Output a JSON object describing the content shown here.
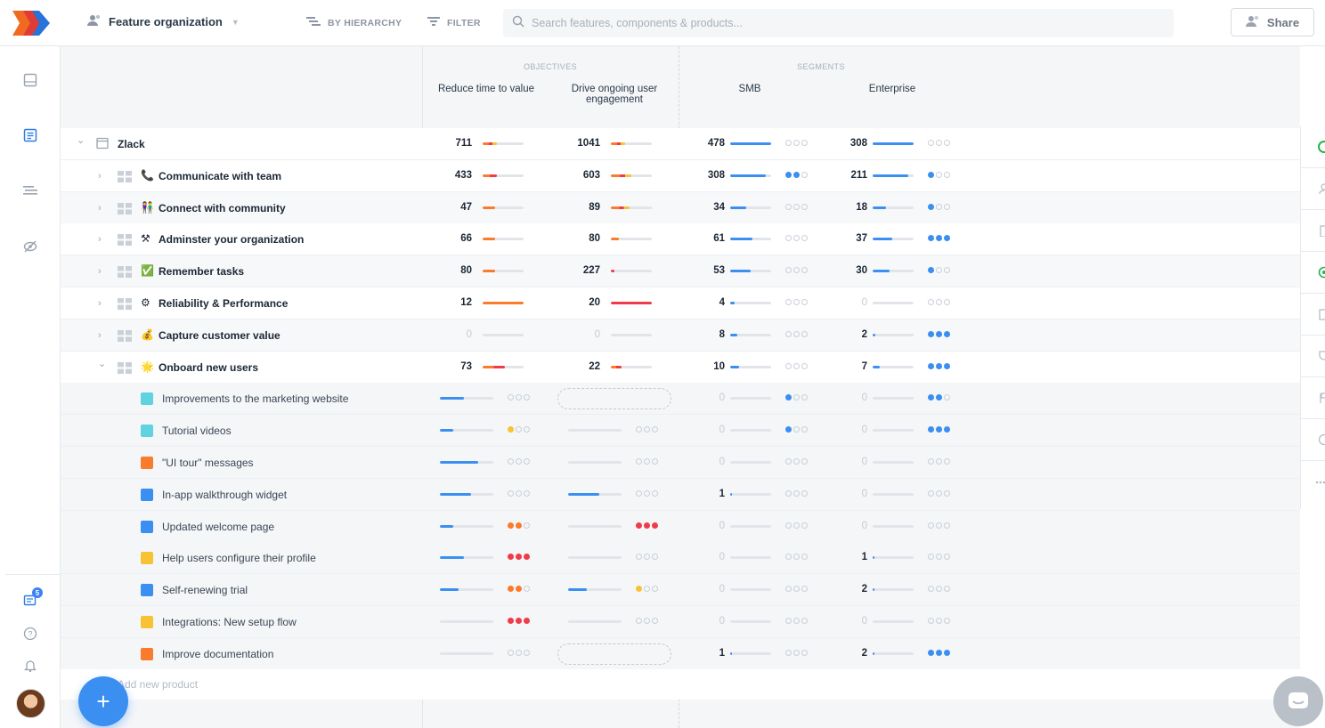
{
  "topbar": {
    "workspace": "Feature organization",
    "by_hierarchy": "BY HIERARCHY",
    "filter": "FILTER",
    "search_placeholder": "Search features, components & products...",
    "share": "Share"
  },
  "sidebar": {
    "notifications_badge": "5"
  },
  "columns": {
    "objectives_label": "OBJECTIVES",
    "segments_label": "SEGMENTS",
    "reduce": "Reduce time to value",
    "drive_line1": "Drive ongoing user",
    "drive_line2": "engagement",
    "smb": "SMB",
    "enterprise": "Enterprise"
  },
  "colors": {
    "blue": "#3b8ff0",
    "orange": "#f97b2b",
    "red": "#ef3b4a",
    "yellow": "#f7c234",
    "teal": "#5fd3df"
  },
  "rows": [
    {
      "name": "Zlack",
      "icon": "window-icon",
      "level": 0,
      "values": [
        "711",
        "1041",
        "478",
        "308"
      ],
      "fills": [
        [
          0.35,
          "oy"
        ],
        [
          0.35,
          "oy"
        ],
        [
          1.0,
          "b"
        ],
        [
          1.0,
          "b"
        ]
      ],
      "dots": [
        null,
        null,
        0,
        0
      ]
    },
    {
      "name": "Communicate with team",
      "icon": "phone-icon",
      "emoji": "📞",
      "level": 1,
      "values": [
        "433",
        "603",
        "308",
        "211"
      ],
      "fills": [
        [
          0.35,
          "or"
        ],
        [
          0.5,
          "oy"
        ],
        [
          0.88,
          "b"
        ],
        [
          0.88,
          "b"
        ]
      ],
      "dots": [
        null,
        null,
        2,
        1
      ]
    },
    {
      "name": "Connect with community",
      "icon": "people-icon",
      "emoji": "👫",
      "level": 1,
      "values": [
        "47",
        "89",
        "34",
        "18"
      ],
      "fills": [
        [
          0.3,
          "o"
        ],
        [
          0.45,
          "oy"
        ],
        [
          0.4,
          "b"
        ],
        [
          0.33,
          "b"
        ]
      ],
      "dots": [
        null,
        null,
        0,
        1
      ]
    },
    {
      "name": "Adminster your organization",
      "icon": "tools-icon",
      "emoji": "⚒",
      "level": 1,
      "values": [
        "66",
        "80",
        "61",
        "37"
      ],
      "fills": [
        [
          0.3,
          "o"
        ],
        [
          0.2,
          "o"
        ],
        [
          0.55,
          "b"
        ],
        [
          0.48,
          "b"
        ]
      ],
      "dots": [
        null,
        null,
        0,
        3
      ]
    },
    {
      "name": "Remember tasks",
      "icon": "checkbox-icon",
      "emoji": "✅",
      "level": 1,
      "values": [
        "80",
        "227",
        "53",
        "30"
      ],
      "fills": [
        [
          0.3,
          "o"
        ],
        [
          0.08,
          "r"
        ],
        [
          0.5,
          "b"
        ],
        [
          0.42,
          "b"
        ]
      ],
      "dots": [
        null,
        null,
        0,
        1
      ]
    },
    {
      "name": "Reliability & Performance",
      "icon": "gear-icon",
      "emoji": "⚙",
      "level": 1,
      "values": [
        "12",
        "20",
        "4",
        "0"
      ],
      "fills": [
        [
          1.0,
          "o"
        ],
        [
          1.0,
          "r"
        ],
        [
          0.1,
          "b"
        ],
        [
          0,
          "b"
        ]
      ],
      "dots": [
        null,
        null,
        0,
        0
      ]
    },
    {
      "name": "Capture customer value",
      "icon": "moneybag-icon",
      "emoji": "💰",
      "level": 1,
      "values": [
        "0",
        "0",
        "8",
        "2"
      ],
      "fills": [
        [
          0,
          "o"
        ],
        [
          0,
          "o"
        ],
        [
          0.18,
          "b"
        ],
        [
          0.06,
          "b"
        ]
      ],
      "dots": [
        null,
        null,
        0,
        3
      ]
    },
    {
      "name": "Onboard new users",
      "icon": "star-icon",
      "emoji": "🌟",
      "level": 1,
      "expanded": true,
      "values": [
        "73",
        "22",
        "10",
        "7"
      ],
      "fills": [
        [
          0.55,
          "or"
        ],
        [
          0.25,
          "or"
        ],
        [
          0.22,
          "b"
        ],
        [
          0.18,
          "b"
        ]
      ],
      "dots": [
        null,
        null,
        0,
        3
      ]
    },
    {
      "name": "Improvements to the marketing website",
      "color": "teal",
      "level": 2,
      "values": [
        null,
        null,
        "0",
        "0"
      ],
      "obj": [
        [
          0.45,
          0
        ],
        "dashed"
      ],
      "segdots": [
        1,
        2
      ]
    },
    {
      "name": "Tutorial videos",
      "color": "teal",
      "level": 2,
      "values": [
        null,
        null,
        "0",
        "0"
      ],
      "obj": [
        [
          0.25,
          "y1"
        ],
        [
          0,
          0
        ]
      ],
      "segdots": [
        1,
        3
      ]
    },
    {
      "name": "\"UI tour\" messages",
      "color": "orange",
      "level": 2,
      "values": [
        null,
        null,
        "0",
        "0"
      ],
      "obj": [
        [
          0.72,
          0
        ],
        [
          0,
          0
        ]
      ],
      "segdots": [
        0,
        0
      ]
    },
    {
      "name": "In-app walkthrough widget",
      "color": "blue",
      "level": 2,
      "values": [
        null,
        null,
        "1",
        "0"
      ],
      "obj": [
        [
          0.58,
          0
        ],
        [
          0.58,
          0
        ]
      ],
      "segdots": [
        0,
        0
      ]
    },
    {
      "name": "Updated welcome page",
      "color": "blue",
      "level": 2,
      "values": [
        null,
        null,
        "0",
        "0"
      ],
      "obj": [
        [
          0.25,
          "o2"
        ],
        [
          0,
          "r3"
        ]
      ],
      "segdots": [
        0,
        0
      ]
    },
    {
      "name": "Help users configure their profile",
      "color": "yellow",
      "level": 2,
      "values": [
        null,
        null,
        "0",
        "1"
      ],
      "obj": [
        [
          0.45,
          "r3"
        ],
        [
          0,
          0
        ]
      ],
      "segdots": [
        0,
        0
      ]
    },
    {
      "name": "Self-renewing trial",
      "color": "blue",
      "level": 2,
      "values": [
        null,
        null,
        "0",
        "2"
      ],
      "obj": [
        [
          0.35,
          "o2"
        ],
        [
          0.35,
          "y1"
        ]
      ],
      "segdots": [
        0,
        0
      ]
    },
    {
      "name": "Integrations: New setup flow",
      "color": "yellow",
      "level": 2,
      "values": [
        null,
        null,
        "0",
        "0"
      ],
      "obj": [
        [
          0,
          "r3"
        ],
        [
          0,
          0
        ]
      ],
      "segdots": [
        0,
        0
      ]
    },
    {
      "name": "Improve documentation",
      "color": "orange",
      "level": 2,
      "values": [
        null,
        null,
        "1",
        "2"
      ],
      "obj": [
        [
          0,
          0
        ],
        "dashed"
      ],
      "segdots": [
        0,
        3
      ]
    }
  ],
  "add_product": "Add new product"
}
